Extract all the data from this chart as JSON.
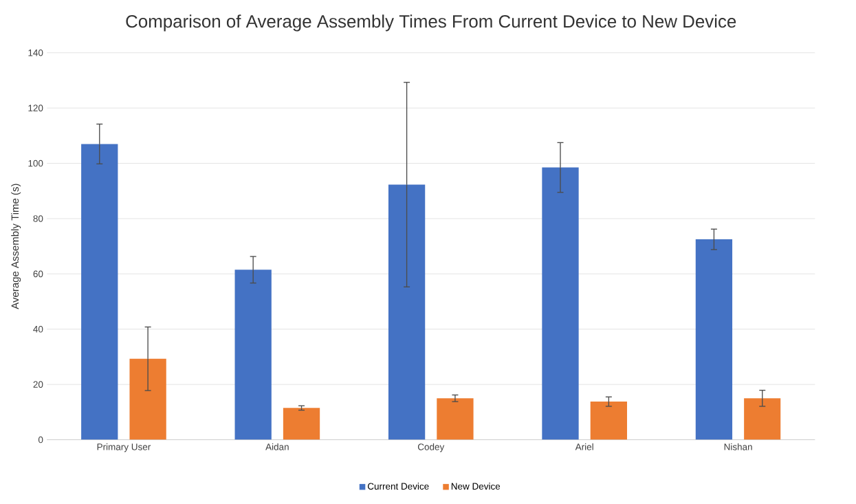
{
  "chart_data": {
    "type": "bar",
    "title": "Comparison of Average Assembly Times From Current Device to New Device",
    "ylabel": "Average Assembly Time (s)",
    "categories": [
      "Primary User",
      "Aidan",
      "Codey",
      "Ariel",
      "Nishan"
    ],
    "series": [
      {
        "name": "Current Device",
        "color": "#4472c4",
        "values": [
          107,
          61.5,
          92.3,
          98.5,
          72.5
        ],
        "errors": [
          7.2,
          4.8,
          37,
          9,
          3.7
        ]
      },
      {
        "name": "New Device",
        "color": "#ed7d31",
        "values": [
          29.3,
          11.5,
          15,
          13.8,
          15
        ],
        "errors": [
          11.5,
          0.8,
          1.2,
          1.7,
          2.9
        ]
      }
    ],
    "ylim": [
      0,
      140
    ],
    "yticks": [
      0,
      20,
      40,
      60,
      80,
      100,
      120,
      140
    ],
    "grid": "y",
    "legend": "bottom"
  }
}
